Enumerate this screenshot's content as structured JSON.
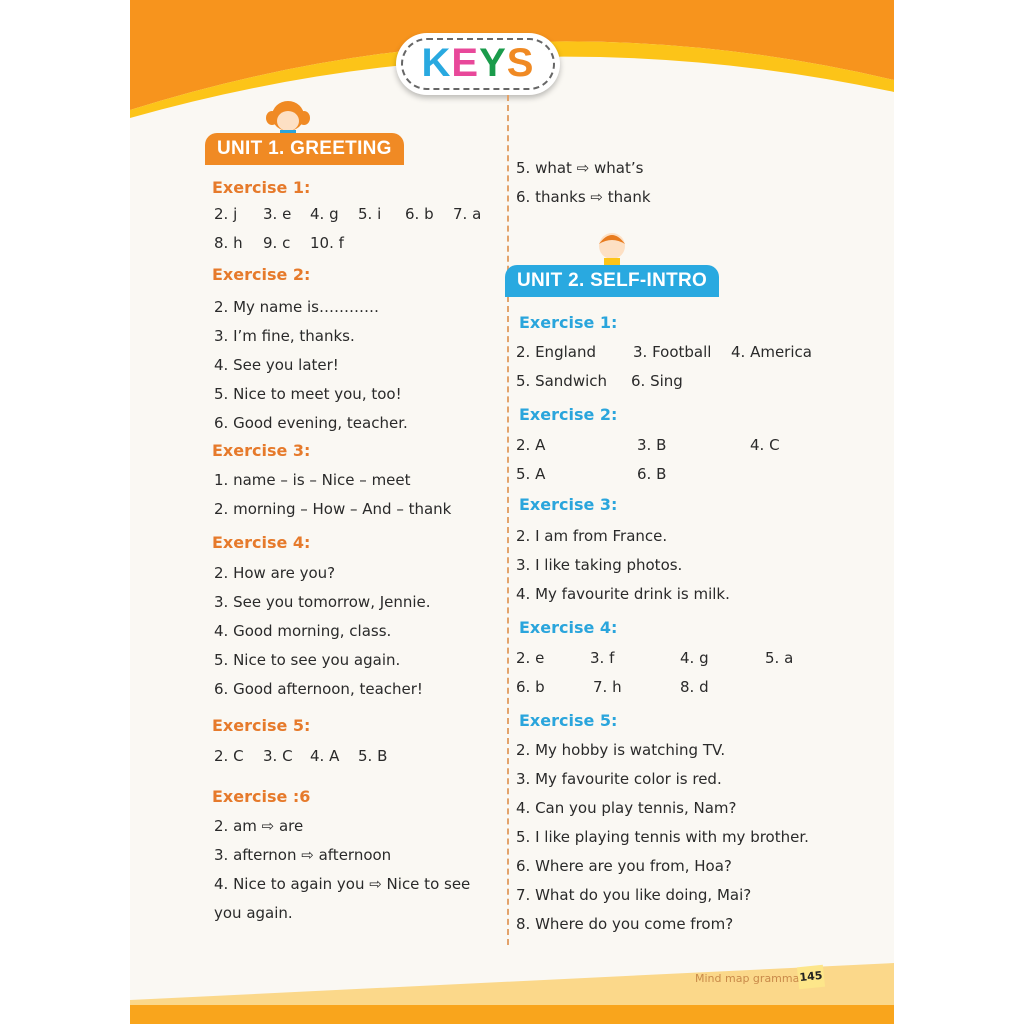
{
  "header": {
    "title_letters": [
      {
        "char": "K",
        "color": "#29a9e0"
      },
      {
        "char": "E",
        "color": "#e8489a"
      },
      {
        "char": "Y",
        "color": "#1a9b4b"
      },
      {
        "char": "S",
        "color": "#f08a24"
      }
    ]
  },
  "colors": {
    "orange": "#f7941d",
    "yellow": "#fcc418",
    "blue": "#29a9e0",
    "heading_orange": "#e67a2b",
    "heading_blue": "#2aa5dc"
  },
  "left": {
    "unit_title": "UNIT 1. GREETING",
    "items": [
      {
        "type": "h",
        "text": "Exercise 1:"
      },
      {
        "type": "row",
        "cells": [
          "2. j",
          "3. e",
          "4. g",
          "5. i",
          "6. b",
          "7. a"
        ]
      },
      {
        "type": "row",
        "cells": [
          "8. h",
          "9. c",
          "10. f"
        ]
      },
      {
        "type": "h",
        "text": "Exercise 2:"
      },
      {
        "type": "line",
        "text": "2. My name is…………"
      },
      {
        "type": "line",
        "text": "3. I’m fine, thanks."
      },
      {
        "type": "line",
        "text": "4. See you later!"
      },
      {
        "type": "line",
        "text": "5. Nice to meet you, too!"
      },
      {
        "type": "line",
        "text": "6. Good evening, teacher."
      },
      {
        "type": "h",
        "text": "Exercise 3:"
      },
      {
        "type": "line",
        "text": "1. name – is – Nice – meet"
      },
      {
        "type": "line",
        "text": "2. morning – How – And – thank"
      },
      {
        "type": "h",
        "text": "Exercise 4:"
      },
      {
        "type": "line",
        "text": "2. How are you?"
      },
      {
        "type": "line",
        "text": "3. See you tomorrow, Jennie."
      },
      {
        "type": "line",
        "text": "4. Good morning, class."
      },
      {
        "type": "line",
        "text": "5. Nice to see you again."
      },
      {
        "type": "line",
        "text": "6. Good afternoon, teacher!"
      },
      {
        "type": "h",
        "text": "Exercise 5:"
      },
      {
        "type": "row",
        "cells": [
          "2. C",
          "3. C",
          "4. A",
          "5. B"
        ]
      },
      {
        "type": "h",
        "text": "Exercise :6"
      },
      {
        "type": "line",
        "text": "2. am ⇨ are"
      },
      {
        "type": "line",
        "text": "3. afternon ⇨ afternoon"
      },
      {
        "type": "line",
        "text": "4. Nice to again you ⇨ Nice to see"
      },
      {
        "type": "line",
        "text": "you again."
      }
    ]
  },
  "right": {
    "unit_title": "UNIT 2. SELF-INTRO",
    "items": [
      {
        "type": "line",
        "text": "5. what ⇨ what’s"
      },
      {
        "type": "line",
        "text": "6. thanks ⇨ thank"
      },
      {
        "type": "h",
        "text": "Exercise 1:"
      },
      {
        "type": "row",
        "cells": [
          "2. England",
          "3. Football",
          "4. America"
        ]
      },
      {
        "type": "row",
        "cells": [
          "5. Sandwich",
          "6. Sing"
        ]
      },
      {
        "type": "h",
        "text": "Exercise 2:"
      },
      {
        "type": "row",
        "cells": [
          "2. A",
          "3. B",
          "4. C"
        ]
      },
      {
        "type": "row",
        "cells": [
          "5. A",
          "6. B"
        ]
      },
      {
        "type": "h",
        "text": "Exercise 3:"
      },
      {
        "type": "line",
        "text": "2. I am from France."
      },
      {
        "type": "line",
        "text": "3. I like taking photos."
      },
      {
        "type": "line",
        "text": "4. My favourite drink is milk."
      },
      {
        "type": "h",
        "text": "Exercise 4:"
      },
      {
        "type": "row",
        "cells": [
          "2. e",
          "3. f",
          "4. g",
          "5. a"
        ]
      },
      {
        "type": "row",
        "cells": [
          "6. b",
          "7. h",
          "8. d"
        ]
      },
      {
        "type": "h",
        "text": "Exercise 5:"
      },
      {
        "type": "line",
        "text": "2. My hobby is watching TV."
      },
      {
        "type": "line",
        "text": "3. My favourite color is red."
      },
      {
        "type": "line",
        "text": "4. Can you play tennis, Nam?"
      },
      {
        "type": "line",
        "text": "5. I like playing tennis with my brother."
      },
      {
        "type": "line",
        "text": "6. Where are you from, Hoa?"
      },
      {
        "type": "line",
        "text": "7. What do you like doing, Mai?"
      },
      {
        "type": "line",
        "text": "8. Where do you come from?"
      }
    ]
  },
  "footer": {
    "book_title": "Mind map grammar",
    "page_number": "145"
  }
}
